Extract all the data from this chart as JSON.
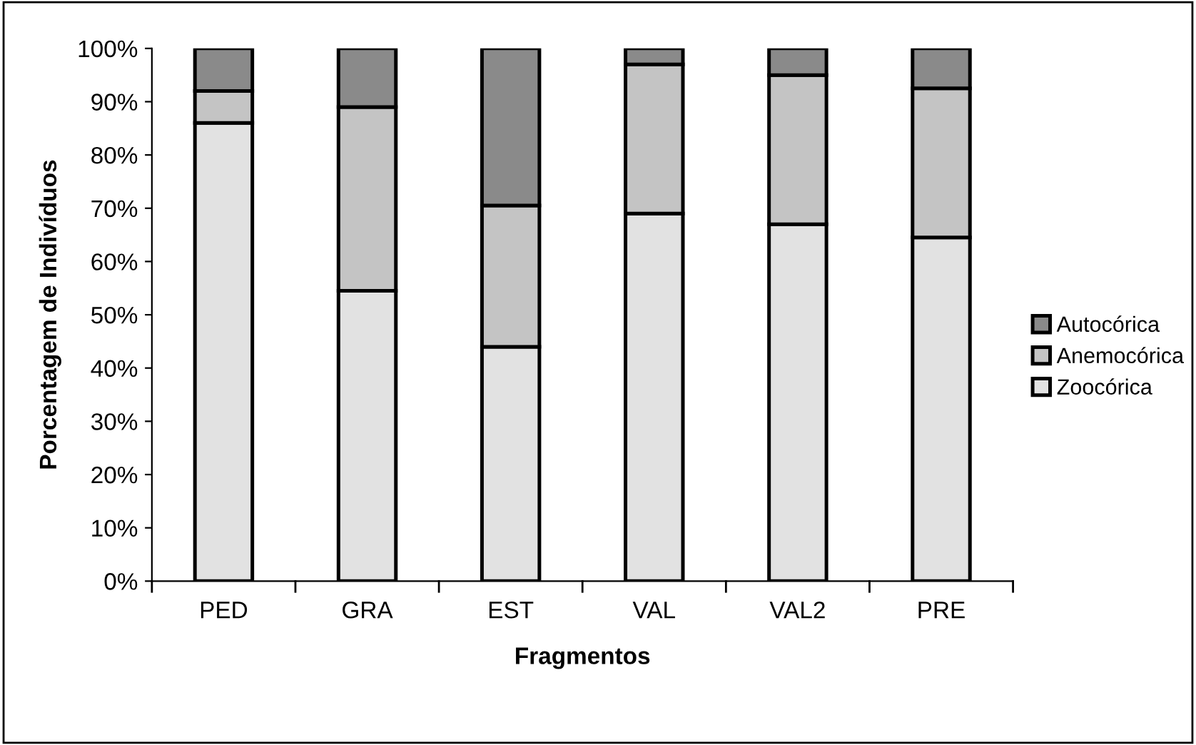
{
  "chart_data": {
    "type": "bar",
    "stacked": true,
    "xlabel": "Fragmentos",
    "ylabel": "Porcentagem de Indivíduos",
    "categories": [
      "PED",
      "GRA",
      "EST",
      "VAL",
      "VAL2",
      "PRE"
    ],
    "series": [
      {
        "name": "Zoocórica",
        "color": "#e2e2e2",
        "values": [
          86,
          54.5,
          44,
          69,
          67,
          64.5
        ]
      },
      {
        "name": "Anemocórica",
        "color": "#c4c4c4",
        "values": [
          6,
          34.5,
          26.5,
          28,
          28,
          28
        ]
      },
      {
        "name": "Autocórica",
        "color": "#8a8a8a",
        "values": [
          8,
          11,
          29.5,
          3,
          5,
          7.5
        ]
      }
    ],
    "ylim": [
      0,
      100
    ],
    "yticks": [
      {
        "value": 0,
        "label": "0%"
      },
      {
        "value": 10,
        "label": "10%"
      },
      {
        "value": 20,
        "label": "20%"
      },
      {
        "value": 30,
        "label": "30%"
      },
      {
        "value": 40,
        "label": "40%"
      },
      {
        "value": 50,
        "label": "50%"
      },
      {
        "value": 60,
        "label": "60%"
      },
      {
        "value": 70,
        "label": "70%"
      },
      {
        "value": 80,
        "label": "80%"
      },
      {
        "value": 90,
        "label": "90%"
      },
      {
        "value": 100,
        "label": "100%"
      }
    ],
    "grid": false,
    "legend": "right"
  }
}
